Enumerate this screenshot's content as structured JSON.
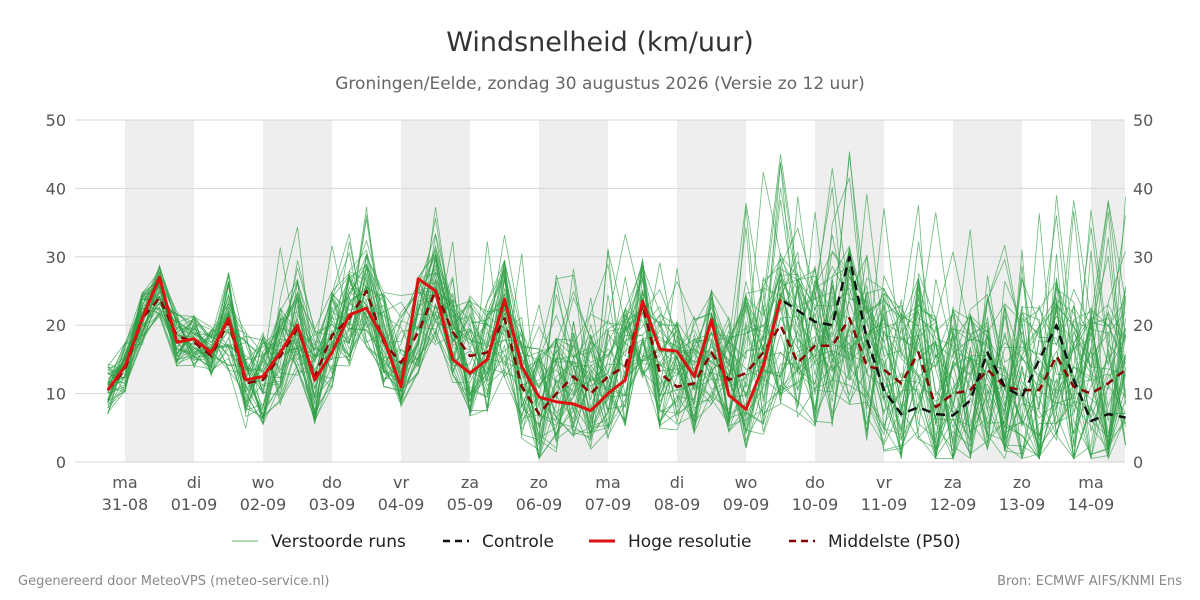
{
  "chart_data": {
    "type": "line",
    "title": "Windsnelheid (km/uur)",
    "subtitle": "Groningen/Eelde, zondag 30 augustus 2026 (Versie zo 12 uur)",
    "ylim": [
      0,
      50
    ],
    "yticks": [
      0,
      10,
      20,
      30,
      40,
      50
    ],
    "grid": true,
    "legend_position": "bottom",
    "x_labels": [
      {
        "day": "ma",
        "date": "31-08"
      },
      {
        "day": "di",
        "date": "01-09"
      },
      {
        "day": "wo",
        "date": "02-09"
      },
      {
        "day": "do",
        "date": "03-09"
      },
      {
        "day": "vr",
        "date": "04-09"
      },
      {
        "day": "za",
        "date": "05-09"
      },
      {
        "day": "zo",
        "date": "06-09"
      },
      {
        "day": "ma",
        "date": "07-09"
      },
      {
        "day": "di",
        "date": "08-09"
      },
      {
        "day": "wo",
        "date": "09-09"
      },
      {
        "day": "do",
        "date": "10-09"
      },
      {
        "day": "vr",
        "date": "11-09"
      },
      {
        "day": "za",
        "date": "12-09"
      },
      {
        "day": "zo",
        "date": "13-09"
      },
      {
        "day": "ma",
        "date": "14-09"
      }
    ],
    "x_start_day": -0.75,
    "x_end_day": 14.5,
    "shaded_days": [
      0,
      2,
      4,
      6,
      8,
      10,
      12,
      14
    ],
    "series": [
      {
        "name": "Hoge resolutie",
        "color": "#dd1111",
        "dash": "none",
        "points": [
          [
            -0.25,
            10.5
          ],
          [
            0,
            14
          ],
          [
            0.25,
            21
          ],
          [
            0.5,
            27
          ],
          [
            0.75,
            17.5
          ],
          [
            1,
            18
          ],
          [
            1.25,
            16
          ],
          [
            1.5,
            21
          ],
          [
            1.75,
            12
          ],
          [
            2,
            12.5
          ],
          [
            2.25,
            16
          ],
          [
            2.5,
            20
          ],
          [
            2.75,
            12
          ],
          [
            3,
            16
          ],
          [
            3.25,
            21.5
          ],
          [
            3.5,
            22.5
          ],
          [
            3.75,
            18
          ],
          [
            4,
            11
          ],
          [
            4.25,
            26.8
          ],
          [
            4.5,
            25
          ],
          [
            4.75,
            15
          ],
          [
            5,
            13
          ],
          [
            5.25,
            15
          ],
          [
            5.5,
            23.8
          ],
          [
            5.75,
            14
          ],
          [
            6,
            9.5
          ],
          [
            6.25,
            8.8
          ],
          [
            6.5,
            8.5
          ],
          [
            6.75,
            7.5
          ],
          [
            7,
            10
          ],
          [
            7.25,
            12
          ],
          [
            7.5,
            23.5
          ],
          [
            7.75,
            16.5
          ],
          [
            8,
            16.2
          ],
          [
            8.25,
            12.5
          ],
          [
            8.5,
            20.8
          ],
          [
            8.75,
            9.8
          ],
          [
            9,
            7.7
          ],
          [
            9.25,
            14
          ],
          [
            9.5,
            23.8
          ]
        ]
      },
      {
        "name": "Controle",
        "color": "#111111",
        "dash": "9,6",
        "points": [
          [
            -0.25,
            10.5
          ],
          [
            0,
            14
          ],
          [
            0.25,
            21
          ],
          [
            0.5,
            27
          ],
          [
            0.75,
            17.5
          ],
          [
            1,
            18
          ],
          [
            1.25,
            16
          ],
          [
            1.5,
            21
          ],
          [
            1.75,
            12
          ],
          [
            2,
            12.5
          ],
          [
            2.25,
            16
          ],
          [
            2.5,
            20
          ],
          [
            2.75,
            12
          ],
          [
            3,
            16
          ],
          [
            3.25,
            21.5
          ],
          [
            3.5,
            22.5
          ],
          [
            3.75,
            18
          ],
          [
            4,
            11
          ],
          [
            4.25,
            26.8
          ],
          [
            4.5,
            25
          ],
          [
            4.75,
            15
          ],
          [
            5,
            13
          ],
          [
            5.25,
            15
          ],
          [
            5.5,
            23.8
          ],
          [
            5.75,
            14
          ],
          [
            6,
            9.5
          ],
          [
            6.25,
            8.8
          ],
          [
            6.5,
            8.5
          ],
          [
            6.75,
            7.5
          ],
          [
            7,
            10
          ],
          [
            7.25,
            12
          ],
          [
            7.5,
            23.5
          ],
          [
            7.75,
            16.5
          ],
          [
            8,
            16.2
          ],
          [
            8.25,
            12.5
          ],
          [
            8.5,
            20.8
          ],
          [
            8.75,
            9.8
          ],
          [
            9,
            7.7
          ],
          [
            9.25,
            14
          ],
          [
            9.5,
            23.8
          ],
          [
            10,
            20.5
          ],
          [
            10.25,
            20
          ],
          [
            10.5,
            30
          ],
          [
            10.75,
            18
          ],
          [
            11,
            10.5
          ],
          [
            11.25,
            7
          ],
          [
            11.5,
            8
          ],
          [
            11.75,
            7
          ],
          [
            12,
            6.8
          ],
          [
            12.25,
            9
          ],
          [
            12.5,
            16
          ],
          [
            12.75,
            11
          ],
          [
            13,
            9.5
          ],
          [
            13.25,
            15
          ],
          [
            13.5,
            20
          ],
          [
            13.75,
            12
          ],
          [
            14,
            6
          ],
          [
            14.25,
            7
          ],
          [
            14.5,
            6.5
          ]
        ]
      },
      {
        "name": "Middelste (P50)",
        "color": "#8b0000",
        "dash": "8,6",
        "points": [
          [
            -0.25,
            10.5
          ],
          [
            0,
            13.5
          ],
          [
            0.25,
            21
          ],
          [
            0.5,
            24
          ],
          [
            0.75,
            18.5
          ],
          [
            1,
            17.5
          ],
          [
            1.25,
            15.5
          ],
          [
            1.5,
            20.5
          ],
          [
            1.75,
            11.5
          ],
          [
            2,
            12
          ],
          [
            2.25,
            15.5
          ],
          [
            2.5,
            19.5
          ],
          [
            2.75,
            12.5
          ],
          [
            3,
            18.5
          ],
          [
            3.25,
            21
          ],
          [
            3.5,
            25
          ],
          [
            3.75,
            17.5
          ],
          [
            4,
            14.5
          ],
          [
            4.25,
            19
          ],
          [
            4.5,
            25
          ],
          [
            4.75,
            19
          ],
          [
            5,
            15.5
          ],
          [
            5.25,
            16
          ],
          [
            5.5,
            21
          ],
          [
            5.75,
            11
          ],
          [
            6,
            7
          ],
          [
            6.25,
            10
          ],
          [
            6.5,
            12.5
          ],
          [
            6.75,
            10
          ],
          [
            7,
            12.5
          ],
          [
            7.25,
            14
          ],
          [
            7.5,
            23
          ],
          [
            7.75,
            13
          ],
          [
            8,
            11
          ],
          [
            8.25,
            11.5
          ],
          [
            8.5,
            16
          ],
          [
            8.75,
            12
          ],
          [
            9,
            13
          ],
          [
            9.25,
            16
          ],
          [
            9.5,
            20
          ],
          [
            9.75,
            14.5
          ],
          [
            10,
            17
          ],
          [
            10.25,
            17
          ],
          [
            10.5,
            21
          ],
          [
            10.75,
            14
          ],
          [
            11,
            13.5
          ],
          [
            11.25,
            11.5
          ],
          [
            11.5,
            16
          ],
          [
            11.75,
            8
          ],
          [
            12,
            10
          ],
          [
            12.25,
            10.5
          ],
          [
            12.5,
            13.5
          ],
          [
            12.75,
            11
          ],
          [
            13,
            10.5
          ],
          [
            13.25,
            10.5
          ],
          [
            13.5,
            15.5
          ],
          [
            13.75,
            11
          ],
          [
            14,
            10
          ],
          [
            14.25,
            11.5
          ],
          [
            14.5,
            13.5
          ]
        ]
      }
    ],
    "ensemble": {
      "name": "Verstoorde runs",
      "color": "#2e9e44",
      "members": 50,
      "mean_points": [
        [
          -0.25,
          10.5
        ],
        [
          0,
          14
        ],
        [
          0.25,
          21
        ],
        [
          0.5,
          25
        ],
        [
          0.75,
          18
        ],
        [
          1,
          17.5
        ],
        [
          1.25,
          16
        ],
        [
          1.5,
          20.5
        ],
        [
          1.75,
          12
        ],
        [
          2,
          12.5
        ],
        [
          2.25,
          15.5
        ],
        [
          2.5,
          19.5
        ],
        [
          2.75,
          12.5
        ],
        [
          3,
          18
        ],
        [
          3.25,
          21
        ],
        [
          3.5,
          24
        ],
        [
          3.75,
          18
        ],
        [
          4,
          15
        ],
        [
          4.25,
          20
        ],
        [
          4.5,
          24
        ],
        [
          4.75,
          18.5
        ],
        [
          5,
          15.5
        ],
        [
          5.25,
          16
        ],
        [
          5.5,
          21
        ],
        [
          5.75,
          11.5
        ],
        [
          6,
          8
        ],
        [
          6.25,
          10
        ],
        [
          6.5,
          12
        ],
        [
          6.75,
          10.5
        ],
        [
          7,
          12
        ],
        [
          7.25,
          14
        ],
        [
          7.5,
          21
        ],
        [
          7.75,
          13.5
        ],
        [
          8,
          12
        ],
        [
          8.25,
          12.5
        ],
        [
          8.5,
          17
        ],
        [
          8.75,
          13
        ],
        [
          9,
          13.5
        ],
        [
          9.25,
          16
        ],
        [
          9.5,
          20
        ],
        [
          9.75,
          16
        ],
        [
          10,
          17
        ],
        [
          10.25,
          17
        ],
        [
          10.5,
          20
        ],
        [
          10.75,
          15
        ],
        [
          11,
          13.5
        ],
        [
          11.25,
          12
        ],
        [
          11.5,
          15
        ],
        [
          11.75,
          9.5
        ],
        [
          12,
          10.5
        ],
        [
          12.25,
          11
        ],
        [
          12.5,
          13.5
        ],
        [
          12.75,
          11.5
        ],
        [
          13,
          11
        ],
        [
          13.25,
          11
        ],
        [
          13.5,
          15
        ],
        [
          13.75,
          11.5
        ],
        [
          14,
          10.5
        ],
        [
          14.25,
          12
        ],
        [
          14.5,
          14
        ]
      ]
    }
  },
  "legend": [
    {
      "label": "Verstoorde runs",
      "color": "#2e9e44",
      "style": "thin"
    },
    {
      "label": "Controle",
      "color": "#111111",
      "style": "dashed"
    },
    {
      "label": "Hoge resolutie",
      "color": "#dd1111",
      "style": "solid"
    },
    {
      "label": "Middelste (P50)",
      "color": "#8b0000",
      "style": "dashed"
    }
  ],
  "footer": {
    "left": "Gegenereerd door MeteoVPS (meteo-service.nl)",
    "right": "Bron: ECMWF AIFS/KNMI Ens"
  }
}
